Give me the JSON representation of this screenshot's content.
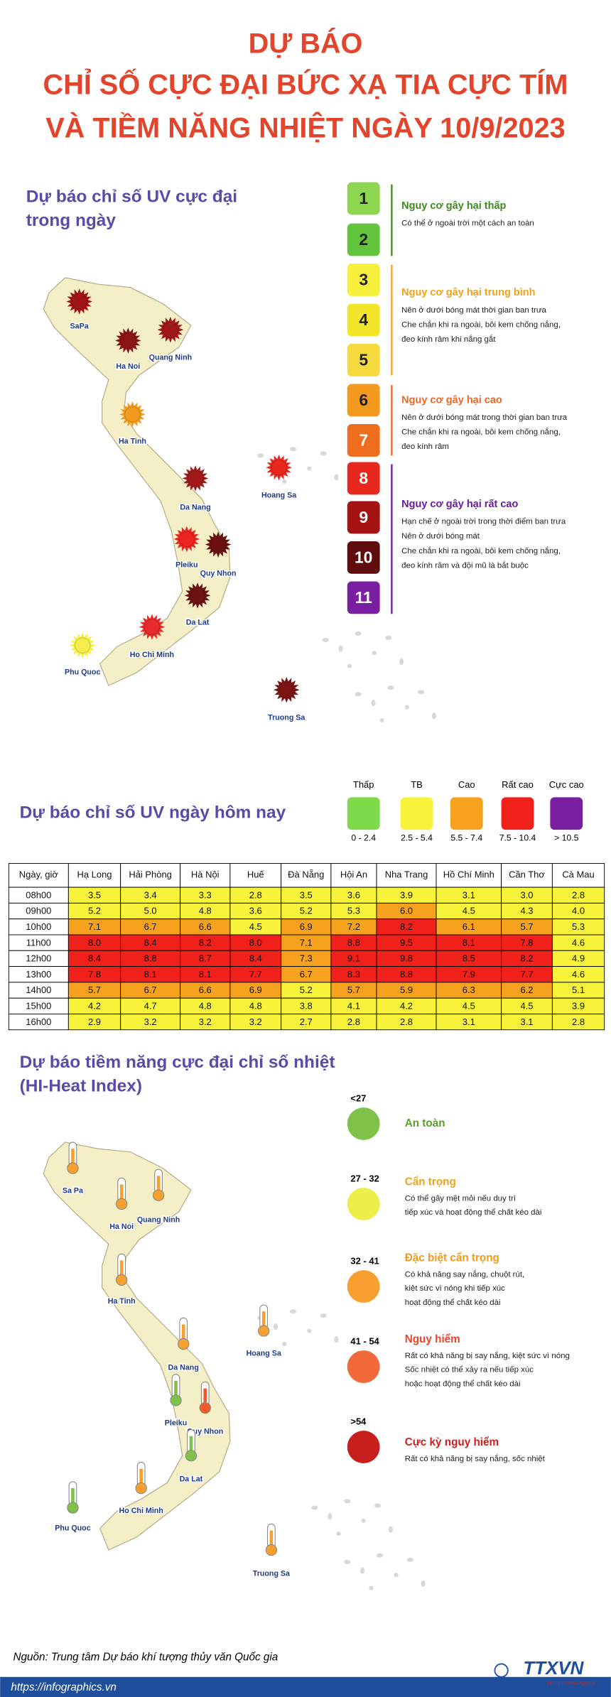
{
  "header": {
    "title": [
      "DỰ BÁO",
      "CHỈ SỐ CỰC ĐẠI BỨC XẠ TIA CỰC TÍM",
      "VÀ TIỀM NĂNG NHIỆT NGÀY 10/9/2023"
    ]
  },
  "uv_map": {
    "title": [
      "Dự báo chỉ số UV cực đại",
      "trong ngày"
    ],
    "places": [
      {
        "name": "SaPa",
        "color": "#a01414"
      },
      {
        "name": "Ha Noi",
        "color": "#8b1414"
      },
      {
        "name": "Quang Ninh",
        "color": "#a01818"
      },
      {
        "name": "Ha Tinh",
        "color": "#f39a1e"
      },
      {
        "name": "Da Nang",
        "color": "#a01a1a"
      },
      {
        "name": "Hoang Sa",
        "color": "#e8281e"
      },
      {
        "name": "Pleiku",
        "color": "#ed2424"
      },
      {
        "name": "Quy Nhon",
        "color": "#6b1010"
      },
      {
        "name": "Da Lat",
        "color": "#6b1212"
      },
      {
        "name": "Ho Chi Minh",
        "color": "#e52b2b"
      },
      {
        "name": "Phu Quoc",
        "color": "#f5ee4b"
      },
      {
        "name": "Truong Sa",
        "color": "#7d1414"
      }
    ]
  },
  "uv_scale": {
    "levels": [
      {
        "value": "1",
        "color": "#8fd650"
      },
      {
        "value": "2",
        "color": "#62c43a"
      },
      {
        "value": "3",
        "color": "#f6ef3c"
      },
      {
        "value": "4",
        "color": "#f2e52a"
      },
      {
        "value": "5",
        "color": "#f4da3e"
      },
      {
        "value": "6",
        "color": "#f39a1e"
      },
      {
        "value": "7",
        "color": "#ee6d1e"
      },
      {
        "value": "8",
        "color": "#e8281e"
      },
      {
        "value": "9",
        "color": "#a41212"
      },
      {
        "value": "10",
        "color": "#5e0c0c"
      },
      {
        "value": "11",
        "color": "#7b1fa2"
      }
    ],
    "groups": [
      {
        "title": "Nguy cơ gây hại thấp",
        "color": "#3d8a1e",
        "lines": [
          "Có thể ở ngoài trời một cách an toàn"
        ]
      },
      {
        "title": "Nguy cơ gây hại trung bình",
        "color": "#f0a31a",
        "lines": [
          "Nên ở dưới bóng mát thời gian ban trưa",
          "Che chắn khi ra ngoài, bôi kem chống nắng,",
          "đeo kính râm khi nắng gắt"
        ]
      },
      {
        "title": "Nguy cơ gây hại cao",
        "color": "#e8682a",
        "lines": [
          "Nên ở dưới bóng mát trong thời gian ban trưa",
          "Che chắn khi ra ngoài, bôi kem chống nắng,",
          "đeo kính râm"
        ]
      },
      {
        "title": "Nguy cơ gây hại rất cao",
        "color": "#6a1b9a",
        "lines": [
          "Hạn chế ở ngoài trời trong thời điểm ban trưa",
          "Nên ở dưới bóng mát",
          "Che chắn khi ra ngoài, bôi kem chống nắng,",
          "đeo kính râm và đội mũ là bắt buộc"
        ]
      }
    ]
  },
  "uv_today": {
    "title": "Dự báo chỉ số UV ngày hôm nay",
    "legend": [
      {
        "label": "Thấp",
        "range": "0 - 2.4",
        "color": "#7ed94b"
      },
      {
        "label": "TB",
        "range": "2.5 - 5.4",
        "color": "#f6f33a"
      },
      {
        "label": "Cao",
        "range": "5.5 - 7.4",
        "color": "#f7a21e"
      },
      {
        "label": "Rất cao",
        "range": "7.5 - 10.4",
        "color": "#f0201a"
      },
      {
        "label": "Cực cao",
        "range": "> 10.5",
        "color": "#7b1fa2"
      }
    ]
  },
  "uv_table": {
    "header": [
      "Ngày, giờ",
      "Hạ Long",
      "Hải Phòng",
      "Hà Nội",
      "Huế",
      "Đà Nẵng",
      "Hội An",
      "Nha Trang",
      "Hồ Chí Minh",
      "Cần Thơ",
      "Cà Mau"
    ],
    "rows": [
      [
        "08h00",
        "3.5",
        "3.4",
        "3.3",
        "2.8",
        "3.5",
        "3.6",
        "3.9",
        "3.1",
        "3.0",
        "2.8"
      ],
      [
        "09h00",
        "5.2",
        "5.0",
        "4.8",
        "3.6",
        "5.2",
        "5.3",
        "6.0",
        "4.5",
        "4.3",
        "4.0"
      ],
      [
        "10h00",
        "7.1",
        "6.7",
        "6.6",
        "4.5",
        "6.9",
        "7.2",
        "8.2",
        "6.1",
        "5.7",
        "5.3"
      ],
      [
        "11h00",
        "8.0",
        "8.4",
        "8.2",
        "8.0",
        "7.1",
        "8.8",
        "9.5",
        "8.1",
        "7.8",
        "4.6"
      ],
      [
        "12h00",
        "8.4",
        "8.8",
        "8.7",
        "8.4",
        "7.3",
        "9.1",
        "9.8",
        "8.5",
        "8.2",
        "4.9"
      ],
      [
        "13h00",
        "7.8",
        "8.1",
        "8.1",
        "7.7",
        "6.7",
        "8.3",
        "8.8",
        "7.9",
        "7.7",
        "4.6"
      ],
      [
        "14h00",
        "5.7",
        "6.7",
        "6.6",
        "6.9",
        "5.2",
        "5.7",
        "5.9",
        "6.3",
        "6.2",
        "5.1"
      ],
      [
        "15h00",
        "4.2",
        "4.7",
        "4.8",
        "4.8",
        "3.8",
        "4.1",
        "4.2",
        "4.5",
        "4.5",
        "3.9"
      ],
      [
        "16h00",
        "2.9",
        "3.2",
        "3.2",
        "3.2",
        "2.7",
        "2.8",
        "2.8",
        "3.1",
        "3.1",
        "2.8"
      ]
    ]
  },
  "heat_map": {
    "title": [
      "Dự báo tiềm năng cực đại chỉ số nhiệt",
      "(HI-Heat Index)"
    ],
    "places": [
      {
        "name": "Sa Pa",
        "color": "#f7a030"
      },
      {
        "name": "Ha Noi",
        "color": "#f7a030"
      },
      {
        "name": "Quang Ninh",
        "color": "#f7a030"
      },
      {
        "name": "Ha Tinh",
        "color": "#f7a030"
      },
      {
        "name": "Hoang Sa",
        "color": "#f7a030"
      },
      {
        "name": "Da Nang",
        "color": "#f7a030"
      },
      {
        "name": "Pleiku",
        "color": "#7fc24a"
      },
      {
        "name": "Quy Nhon",
        "color": "#f05a28"
      },
      {
        "name": "Da Lat",
        "color": "#7fc24a"
      },
      {
        "name": "Ho Chi Minh",
        "color": "#f7a030"
      },
      {
        "name": "Phu Quoc",
        "color": "#7fc24a"
      },
      {
        "name": "Truong Sa",
        "color": "#f7a030"
      }
    ],
    "legend": [
      {
        "range": "<27",
        "color": "#7fc24a",
        "title": "An toàn",
        "title_color": "#5aa02a",
        "lines": []
      },
      {
        "range": "27 - 32",
        "color": "#eeee4a",
        "title": "Cẩn trọng",
        "title_color": "#f0a31a",
        "lines": [
          "Có thể gây mệt mỏi nếu duy trì",
          "tiếp xúc và hoạt động thể chất kéo dài"
        ]
      },
      {
        "range": "32 - 41",
        "color": "#f7a030",
        "title": "Đặc biệt cẩn trọng",
        "title_color": "#f09a1e",
        "lines": [
          "Có khả năng say nắng, chuột rút,",
          "kiệt sức vì nóng khi tiếp xúc",
          "hoạt động thể chất kéo dài"
        ]
      },
      {
        "range": "41 - 54",
        "color": "#f26a3a",
        "title": "Nguy hiểm",
        "title_color": "#e8452a",
        "lines": [
          "Rất có khả năng bị say nắng, kiệt sức vì nóng",
          "Sốc nhiệt có thể xảy ra nếu tiếp xúc",
          "hoặc hoạt động thể chất kéo dài"
        ]
      },
      {
        "range": ">54",
        "color": "#c81e1e",
        "title": "Cực kỳ nguy hiểm",
        "title_color": "#d0201e",
        "lines": [
          "Rất có khả năng bị say nắng, sốc nhiệt"
        ]
      }
    ]
  },
  "footer": {
    "source": "Nguồn: Trung tâm Dự báo khí tượng thủy văn Quốc gia",
    "url": "https://infographics.vn",
    "logo": "TTXVN",
    "logo_sub": "Vietnam News Agency"
  }
}
